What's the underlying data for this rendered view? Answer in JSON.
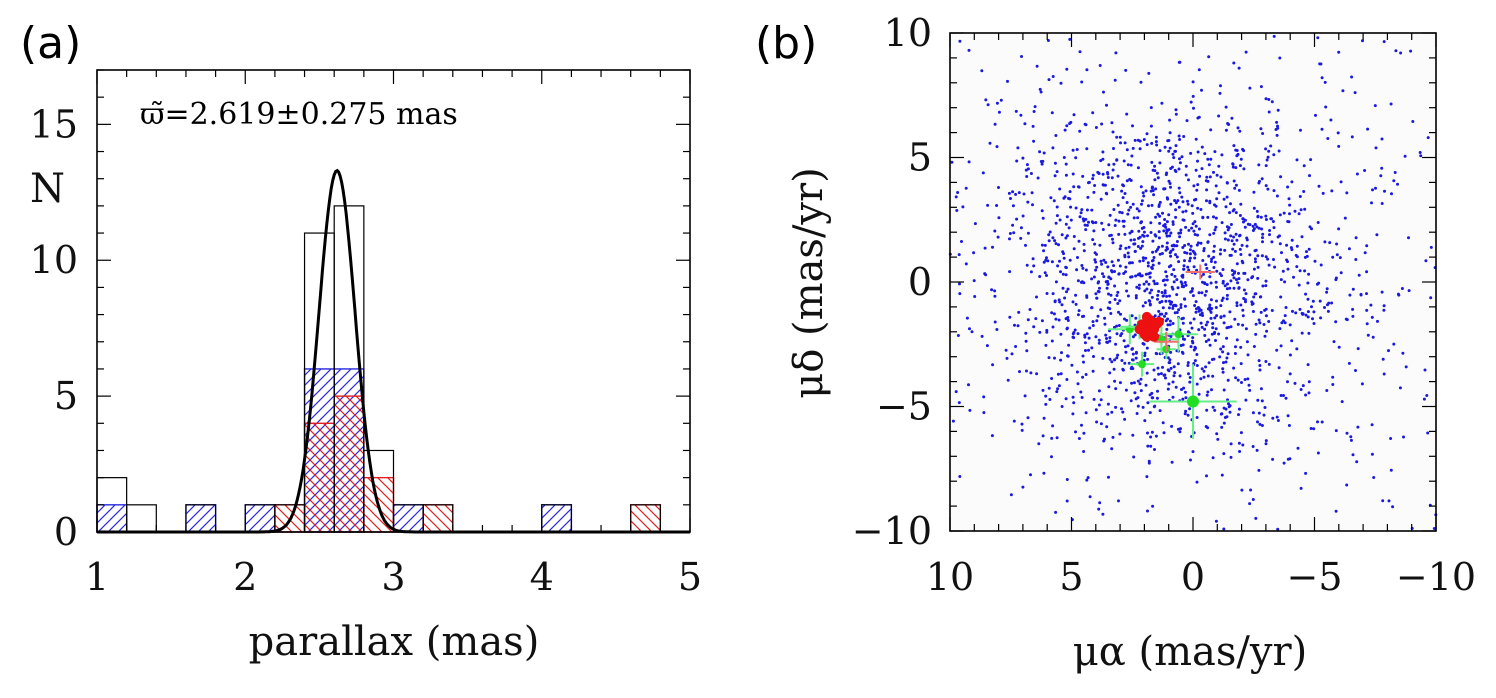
{
  "chart_data": [
    {
      "type": "histogram",
      "panel_label": "(a)",
      "annotation": "ϖ̃=2.619±0.275 mas",
      "xlabel": "parallax (mas)",
      "ylabel": "N",
      "xlim": [
        1,
        5
      ],
      "ylim": [
        0,
        17
      ],
      "xticks": [
        1,
        2,
        3,
        4,
        5
      ],
      "yticks": [
        0,
        5,
        10,
        15
      ],
      "bin_width": 0.2,
      "series": [
        {
          "name": "all",
          "color": "#000000",
          "style": "outline",
          "bins": [
            [
              1.0,
              2
            ],
            [
              1.2,
              1
            ],
            [
              1.6,
              1
            ],
            [
              2.0,
              1
            ],
            [
              2.2,
              1
            ],
            [
              2.4,
              11
            ],
            [
              2.6,
              12
            ],
            [
              2.8,
              3
            ],
            [
              3.0,
              1
            ],
            [
              3.2,
              1
            ],
            [
              4.0,
              1
            ],
            [
              4.6,
              1
            ]
          ]
        },
        {
          "name": "blue subset",
          "color": "#2a2ae0",
          "style": "hatch-forward",
          "bins": [
            [
              1.0,
              1
            ],
            [
              1.6,
              1
            ],
            [
              2.0,
              1
            ],
            [
              2.4,
              6
            ],
            [
              2.6,
              6
            ],
            [
              3.0,
              1
            ],
            [
              4.0,
              1
            ]
          ]
        },
        {
          "name": "red subset",
          "color": "#e02020",
          "style": "hatch-back",
          "bins": [
            [
              2.2,
              1
            ],
            [
              2.4,
              4
            ],
            [
              2.6,
              5
            ],
            [
              2.8,
              2
            ],
            [
              3.2,
              1
            ],
            [
              4.6,
              1
            ]
          ]
        }
      ],
      "gaussian_fit": {
        "mean": 2.619,
        "sigma": 0.122,
        "amplitude": 13.3
      }
    },
    {
      "type": "scatter",
      "panel_label": "(b)",
      "xlabel": "μα (mas/yr)",
      "ylabel": "μδ (mas/yr)",
      "xlim": [
        10,
        -10
      ],
      "ylim": [
        -10,
        10
      ],
      "xticks": [
        10,
        5,
        0,
        -5,
        -10
      ],
      "xtick_labels": [
        "10",
        "5",
        "0",
        "−5",
        "−10"
      ],
      "yticks": [
        -10,
        -5,
        0,
        5,
        10
      ],
      "ytick_labels": [
        "−10",
        "−5",
        "0",
        "5",
        "10"
      ],
      "background_field": {
        "color": "#1a1adf",
        "center": [
          1.0,
          0.2
        ],
        "sigma": [
          3.6,
          3.4
        ],
        "count": 1900
      },
      "red_members": {
        "color": "#ee1111",
        "points": [
          [
            1.9,
            -1.8
          ],
          [
            1.7,
            -1.6
          ],
          [
            2.0,
            -2.1
          ],
          [
            1.8,
            -2.0
          ],
          [
            1.6,
            -1.9
          ],
          [
            2.1,
            -1.7
          ],
          [
            1.9,
            -2.2
          ],
          [
            1.7,
            -2.0
          ],
          [
            1.5,
            -1.7
          ],
          [
            2.2,
            -1.9
          ],
          [
            1.8,
            -1.5
          ],
          [
            1.6,
            -2.2
          ],
          [
            2.0,
            -1.9
          ],
          [
            1.4,
            -1.6
          ],
          [
            1.9,
            -1.4
          ]
        ],
        "crosses": [
          [
            -0.3,
            0.4,
            0.6,
            0.3
          ],
          [
            1.1,
            -2.4,
            0.5,
            0.4
          ]
        ]
      },
      "green_members": {
        "color": "#22dd22",
        "errorbar_color": "#66ee88",
        "points": [
          [
            0.0,
            -4.8,
            1.8,
            1.5
          ],
          [
            2.6,
            -1.9,
            0.9,
            0.6
          ],
          [
            2.2,
            -1.8,
            0.8,
            0.5
          ],
          [
            1.3,
            -2.3,
            0.7,
            0.6
          ],
          [
            0.6,
            -2.1,
            0.8,
            0.7
          ],
          [
            2.1,
            -3.3,
            0.5,
            0.5
          ],
          [
            1.1,
            -2.7,
            0.4,
            0.4
          ]
        ]
      }
    }
  ]
}
